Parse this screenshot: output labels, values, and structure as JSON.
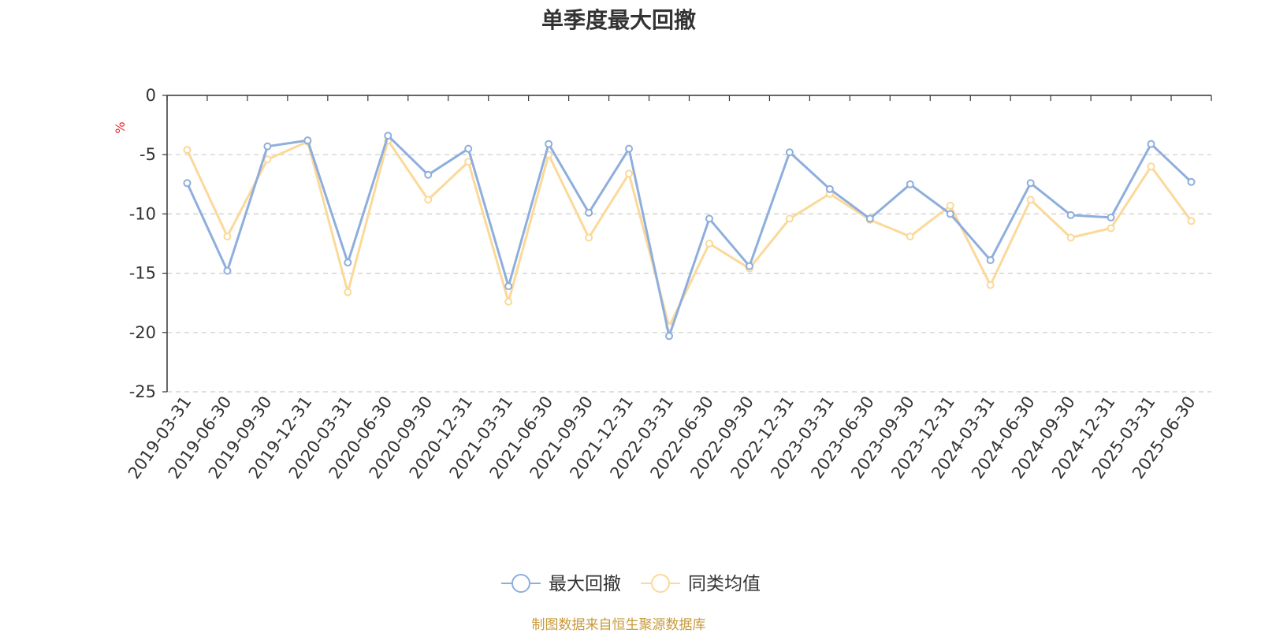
{
  "chart_data": {
    "type": "line",
    "title": "单季度最大回撤",
    "ylabel": "%",
    "ylim": [
      -25,
      0
    ],
    "yticks": [
      0,
      -5,
      -10,
      -15,
      -20,
      -25
    ],
    "grid": true,
    "legend_position": "bottom",
    "categories": [
      "2019-03-31",
      "2019-06-30",
      "2019-09-30",
      "2019-12-31",
      "2020-03-31",
      "2020-06-30",
      "2020-09-30",
      "2020-12-31",
      "2021-03-31",
      "2021-06-30",
      "2021-09-30",
      "2021-12-31",
      "2022-03-31",
      "2022-06-30",
      "2022-09-30",
      "2022-12-31",
      "2023-03-31",
      "2023-06-30",
      "2023-09-30",
      "2023-12-31",
      "2024-03-31",
      "2024-06-30",
      "2024-09-30",
      "2024-12-31",
      "2025-03-31",
      "2025-06-30"
    ],
    "series": [
      {
        "name": "最大回撤",
        "color": "#8eaedd",
        "values": [
          -7.4,
          -14.8,
          -4.3,
          -3.8,
          -14.1,
          -3.4,
          -6.7,
          -4.5,
          -16.1,
          -4.1,
          -9.9,
          -4.5,
          -20.3,
          -10.4,
          -14.4,
          -4.8,
          -7.9,
          -10.4,
          -7.5,
          -10.0,
          -13.9,
          -7.4,
          -10.1,
          -10.3,
          -4.1,
          -7.3
        ]
      },
      {
        "name": "同类均值",
        "color": "#fbd999",
        "values": [
          -4.6,
          -11.9,
          -5.4,
          -3.9,
          -16.6,
          -3.8,
          -8.8,
          -5.6,
          -17.4,
          -5.0,
          -12.0,
          -6.6,
          -19.5,
          -12.5,
          -14.6,
          -10.4,
          -8.3,
          -10.5,
          -11.9,
          -9.3,
          -16.0,
          -8.8,
          -12.0,
          -11.2,
          -6.0,
          -10.6
        ]
      }
    ]
  },
  "source_note": "制图数据来自恒生聚源数据库"
}
